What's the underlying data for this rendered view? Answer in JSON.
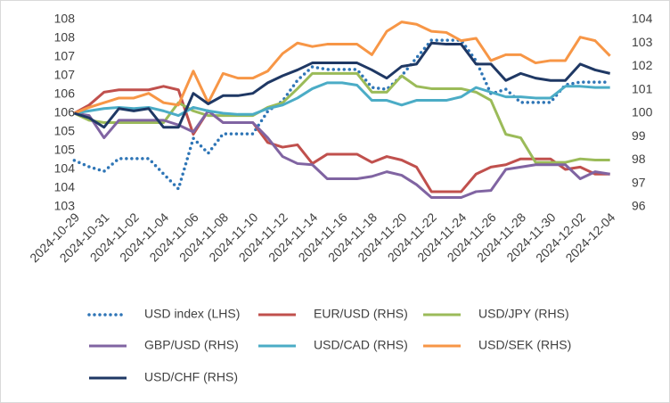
{
  "chart_data": {
    "type": "line",
    "categories": [
      "2024-10-29",
      null,
      "2024-10-31",
      null,
      "2024-11-02",
      null,
      "2024-11-04",
      null,
      "2024-11-06",
      null,
      "2024-11-08",
      null,
      "2024-11-10",
      null,
      "2024-11-12",
      null,
      "2024-11-14",
      null,
      "2024-11-16",
      null,
      "2024-11-18",
      null,
      "2024-11-20",
      null,
      "2024-11-22",
      null,
      "2024-11-24",
      null,
      "2024-11-26",
      null,
      "2024-11-28",
      null,
      "2024-11-30",
      null,
      "2024-12-02",
      null,
      "2024-12-04"
    ],
    "ylim": [
      103,
      108
    ],
    "yticks": [
      103,
      {
        "value": 103.5,
        "label": "104"
      },
      104,
      {
        "value": 104.5,
        "label": "105"
      },
      105,
      {
        "value": 105.5,
        "label": "106"
      },
      106,
      {
        "value": 106.5,
        "label": "107"
      },
      107,
      {
        "value": 107.5,
        "label": "108"
      },
      108
    ],
    "y2lim": [
      96,
      104
    ],
    "y2ticks": [
      96,
      97,
      98,
      99,
      100,
      101,
      102,
      103,
      104
    ],
    "grid": false,
    "legend": "bottom",
    "series": [
      {
        "name": "USD index (LHS)",
        "color": "#2e75b6",
        "line_style": "dotted",
        "axis": "y",
        "values": [
          104.24,
          104.07,
          103.95,
          104.29,
          104.29,
          104.29,
          103.88,
          103.48,
          104.83,
          104.43,
          104.95,
          104.95,
          104.95,
          105.55,
          105.83,
          106.38,
          106.74,
          106.67,
          106.67,
          106.67,
          106.19,
          106.14,
          106.5,
          106.98,
          107.45,
          107.45,
          107.45,
          106.9,
          106.02,
          106.14,
          105.79,
          105.79,
          105.79,
          106.26,
          106.33,
          106.33,
          106.33
        ]
      },
      {
        "name": "EUR/USD (RHS)",
        "color": "#c0504d",
        "line_style": "solid",
        "axis": "y2",
        "values": [
          100,
          100.35,
          100.9,
          101.0,
          101.0,
          101.0,
          101.15,
          101.0,
          99.1,
          100.1,
          99.6,
          99.6,
          99.6,
          98.75,
          98.55,
          98.65,
          97.85,
          98.25,
          98.25,
          98.25,
          97.9,
          98.15,
          98.0,
          97.7,
          96.65,
          96.65,
          96.65,
          97.4,
          97.7,
          97.8,
          98.05,
          98.05,
          98.05,
          97.6,
          97.7,
          97.4,
          97.4
        ]
      },
      {
        "name": "USD/JPY (RHS)",
        "color": "#9bbb59",
        "line_style": "solid",
        "axis": "y2",
        "values": [
          100,
          99.7,
          99.6,
          99.6,
          99.6,
          99.6,
          99.6,
          100.45,
          100.1,
          99.9,
          99.9,
          99.9,
          99.9,
          100.25,
          100.45,
          101.05,
          101.7,
          101.7,
          101.7,
          101.7,
          100.9,
          100.9,
          101.6,
          101.15,
          101.05,
          101.05,
          101.05,
          100.9,
          100.55,
          99.1,
          98.95,
          97.9,
          97.9,
          97.9,
          98.05,
          98.0,
          98.0
        ]
      },
      {
        "name": "GBP/USD (RHS)",
        "color": "#8064a2",
        "line_style": "solid",
        "axis": "y2",
        "values": [
          100,
          99.9,
          98.95,
          99.7,
          99.7,
          99.7,
          99.7,
          99.5,
          99.2,
          100.1,
          99.6,
          99.6,
          99.6,
          98.95,
          98.15,
          97.85,
          97.8,
          97.2,
          97.2,
          97.2,
          97.3,
          97.5,
          97.35,
          96.95,
          96.4,
          96.4,
          96.4,
          96.65,
          96.7,
          97.6,
          97.7,
          97.8,
          97.8,
          97.8,
          97.2,
          97.5,
          97.4
        ]
      },
      {
        "name": "USD/CAD (RHS)",
        "color": "#4bacc6",
        "line_style": "solid",
        "axis": "y2",
        "values": [
          100,
          100.1,
          100.2,
          100.25,
          100.2,
          100.25,
          100.1,
          99.9,
          100.25,
          100.1,
          100.0,
          99.95,
          99.95,
          100.2,
          100.35,
          100.65,
          101.05,
          101.3,
          101.3,
          101.2,
          100.55,
          100.55,
          100.35,
          100.55,
          100.55,
          100.55,
          100.7,
          101.1,
          100.9,
          100.7,
          100.7,
          100.65,
          100.65,
          101.15,
          101.15,
          101.1,
          101.1
        ]
      },
      {
        "name": "USD/SEK (RHS)",
        "color": "#f79646",
        "line_style": "solid",
        "axis": "y2",
        "values": [
          100,
          100.25,
          100.45,
          100.65,
          100.65,
          100.85,
          100.45,
          100.35,
          101.8,
          100.45,
          101.7,
          101.5,
          101.5,
          101.8,
          102.55,
          103.0,
          102.85,
          102.95,
          102.95,
          102.95,
          102.5,
          103.5,
          103.9,
          103.8,
          103.5,
          103.45,
          103.1,
          103.2,
          102.25,
          102.5,
          102.5,
          102.15,
          102.25,
          102.25,
          103.25,
          103.1,
          102.45
        ]
      },
      {
        "name": "USD/CHF (RHS)",
        "color": "#1f3864",
        "line_style": "solid",
        "axis": "y2",
        "values": [
          100,
          99.8,
          99.4,
          100.2,
          100.1,
          100.2,
          99.4,
          99.4,
          100.85,
          100.4,
          100.75,
          100.75,
          100.85,
          101.3,
          101.6,
          101.85,
          102.15,
          102.15,
          102.15,
          102.15,
          101.85,
          101.5,
          102.0,
          102.1,
          103.0,
          102.95,
          102.95,
          102.1,
          102.1,
          101.4,
          101.7,
          101.5,
          101.4,
          101.4,
          102.1,
          101.85,
          101.7
        ]
      }
    ]
  }
}
